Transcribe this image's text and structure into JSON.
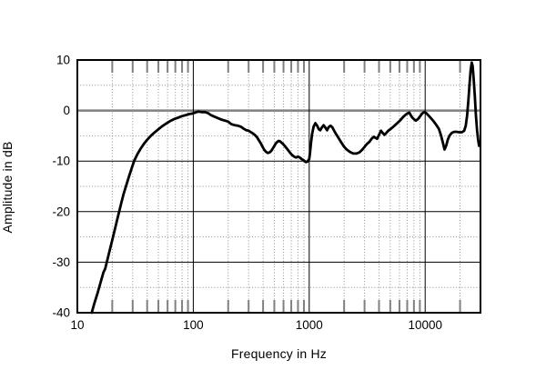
{
  "figure": {
    "background": "#ffffff"
  },
  "chart_data": {
    "type": "line",
    "title": "",
    "xlabel": "Frequency in Hz",
    "ylabel": "Amplitude in dB",
    "x_scale": "log",
    "xlim": [
      10,
      30000
    ],
    "ylim": [
      -40,
      10
    ],
    "x_tick_values": [
      10,
      100,
      1000,
      10000
    ],
    "x_tick_labels": [
      "10",
      "100",
      "1000",
      "10000"
    ],
    "y_tick_values": [
      10,
      0,
      -10,
      -20,
      -30,
      -40
    ],
    "y_tick_labels": [
      "10",
      "0",
      "-10",
      "-20",
      "-30",
      "-40"
    ],
    "y_minor_dotted": [
      5,
      -5,
      -15,
      -25,
      -35
    ],
    "grid": {
      "horizontal_major": "solid",
      "horizontal_minor": "dotted",
      "vertical_decades": "solid",
      "vertical_minor": "dotted",
      "inner_axis_ticks": "top-and-bottom"
    },
    "legend": null,
    "colors": {
      "curve": "#000000",
      "axis_border": "#000000",
      "major_grid": "#000000",
      "zero_line": "#808080",
      "minor_grid": "#8c8c8c",
      "inner_tick": "#808080",
      "text": "#000000",
      "background": "#ffffff"
    },
    "series": [
      {
        "name": "frequency-response",
        "color": "#000000",
        "stroke_width": 2.8,
        "points": [
          [
            13.3,
            -40
          ],
          [
            14,
            -38.2
          ],
          [
            15,
            -36
          ],
          [
            16,
            -33.7
          ],
          [
            16.8,
            -32
          ],
          [
            17.4,
            -31.3
          ],
          [
            18,
            -29.9
          ],
          [
            19,
            -27.7
          ],
          [
            20,
            -25.6
          ],
          [
            21,
            -23.6
          ],
          [
            22,
            -21.7
          ],
          [
            23,
            -19.9
          ],
          [
            24,
            -18.2
          ],
          [
            25,
            -16.6
          ],
          [
            26.5,
            -14.7
          ],
          [
            28,
            -12.9
          ],
          [
            29.5,
            -11.3
          ],
          [
            31,
            -9.9
          ],
          [
            33,
            -8.6
          ],
          [
            35,
            -7.6
          ],
          [
            37.5,
            -6.6
          ],
          [
            40,
            -5.8
          ],
          [
            43,
            -5
          ],
          [
            46,
            -4.4
          ],
          [
            50,
            -3.7
          ],
          [
            54,
            -3.1
          ],
          [
            58,
            -2.6
          ],
          [
            63,
            -2.1
          ],
          [
            68,
            -1.7
          ],
          [
            74,
            -1.4
          ],
          [
            80,
            -1.1
          ],
          [
            86,
            -0.9
          ],
          [
            92,
            -0.7
          ],
          [
            98,
            -0.6
          ],
          [
            104,
            -0.4
          ],
          [
            110,
            -0.2
          ],
          [
            118,
            -0.3
          ],
          [
            126,
            -0.3
          ],
          [
            134,
            -0.5
          ],
          [
            142,
            -0.9
          ],
          [
            152,
            -1.2
          ],
          [
            163,
            -1.5
          ],
          [
            175,
            -1.8
          ],
          [
            188,
            -2
          ],
          [
            200,
            -2.2
          ],
          [
            213,
            -2.7
          ],
          [
            228,
            -2.9
          ],
          [
            243,
            -3
          ],
          [
            258,
            -3.2
          ],
          [
            272,
            -3.6
          ],
          [
            287,
            -3.9
          ],
          [
            300,
            -4
          ],
          [
            315,
            -4.3
          ],
          [
            330,
            -4.6
          ],
          [
            342,
            -4.9
          ],
          [
            355,
            -5.3
          ],
          [
            368,
            -5.9
          ],
          [
            382,
            -6.5
          ],
          [
            396,
            -7.2
          ],
          [
            410,
            -7.8
          ],
          [
            425,
            -8.2
          ],
          [
            440,
            -8.4
          ],
          [
            455,
            -8.3
          ],
          [
            470,
            -8
          ],
          [
            485,
            -7.5
          ],
          [
            500,
            -7
          ],
          [
            515,
            -6.5
          ],
          [
            530,
            -6.2
          ],
          [
            545,
            -6
          ],
          [
            560,
            -6.1
          ],
          [
            580,
            -6.4
          ],
          [
            600,
            -6.7
          ],
          [
            625,
            -7.2
          ],
          [
            650,
            -7.7
          ],
          [
            680,
            -8.3
          ],
          [
            710,
            -8.8
          ],
          [
            740,
            -9.1
          ],
          [
            770,
            -9.3
          ],
          [
            800,
            -9.1
          ],
          [
            830,
            -9.3
          ],
          [
            860,
            -9.6
          ],
          [
            900,
            -9.9
          ],
          [
            935,
            -10.2
          ],
          [
            965,
            -10.1
          ],
          [
            1000,
            -9.6
          ],
          [
            1015,
            -8.5
          ],
          [
            1035,
            -6.5
          ],
          [
            1060,
            -4.6
          ],
          [
            1090,
            -3.2
          ],
          [
            1130,
            -2.5
          ],
          [
            1170,
            -3
          ],
          [
            1210,
            -3.7
          ],
          [
            1245,
            -3.9
          ],
          [
            1280,
            -3.4
          ],
          [
            1330,
            -2.9
          ],
          [
            1380,
            -3.4
          ],
          [
            1425,
            -3.9
          ],
          [
            1470,
            -3.3
          ],
          [
            1530,
            -3
          ],
          [
            1580,
            -3.3
          ],
          [
            1650,
            -4.1
          ],
          [
            1720,
            -4.8
          ],
          [
            1800,
            -5.5
          ],
          [
            1890,
            -6.3
          ],
          [
            1990,
            -7.1
          ],
          [
            2100,
            -7.7
          ],
          [
            2250,
            -8.2
          ],
          [
            2400,
            -8.5
          ],
          [
            2550,
            -8.5
          ],
          [
            2700,
            -8.3
          ],
          [
            2850,
            -7.8
          ],
          [
            3000,
            -7.2
          ],
          [
            3150,
            -6.6
          ],
          [
            3300,
            -6.2
          ],
          [
            3450,
            -5.6
          ],
          [
            3600,
            -5.2
          ],
          [
            3720,
            -5.4
          ],
          [
            3850,
            -5.6
          ],
          [
            4000,
            -4.8
          ],
          [
            4150,
            -4
          ],
          [
            4300,
            -4.4
          ],
          [
            4450,
            -4.8
          ],
          [
            4600,
            -4.5
          ],
          [
            4800,
            -4
          ],
          [
            5000,
            -3.7
          ],
          [
            5250,
            -3.3
          ],
          [
            5500,
            -2.9
          ],
          [
            5800,
            -2.4
          ],
          [
            6100,
            -1.9
          ],
          [
            6450,
            -1.3
          ],
          [
            6800,
            -0.8
          ],
          [
            7100,
            -0.5
          ],
          [
            7300,
            -0.4
          ],
          [
            7500,
            -0.9
          ],
          [
            7750,
            -1.4
          ],
          [
            8000,
            -1.7
          ],
          [
            8300,
            -2
          ],
          [
            8650,
            -1.7
          ],
          [
            9000,
            -1.2
          ],
          [
            9400,
            -0.6
          ],
          [
            9800,
            -0.3
          ],
          [
            10200,
            -0.5
          ],
          [
            10700,
            -1
          ],
          [
            11300,
            -1.6
          ],
          [
            11900,
            -2.2
          ],
          [
            12500,
            -2.9
          ],
          [
            13100,
            -3.6
          ],
          [
            13700,
            -4.9
          ],
          [
            14200,
            -6.3
          ],
          [
            14700,
            -7.7
          ],
          [
            15200,
            -6.9
          ],
          [
            15700,
            -5.7
          ],
          [
            16300,
            -4.9
          ],
          [
            17000,
            -4.4
          ],
          [
            17800,
            -4.2
          ],
          [
            18700,
            -4.2
          ],
          [
            19700,
            -4.3
          ],
          [
            20700,
            -4.3
          ],
          [
            21700,
            -4
          ],
          [
            22400,
            -3
          ],
          [
            23000,
            -1
          ],
          [
            23600,
            2
          ],
          [
            24200,
            5.5
          ],
          [
            24700,
            8
          ],
          [
            25200,
            9.5
          ],
          [
            25700,
            8.8
          ],
          [
            26200,
            6.3
          ],
          [
            26800,
            2.8
          ],
          [
            27400,
            -1
          ],
          [
            28000,
            -3.8
          ],
          [
            28600,
            -5.8
          ],
          [
            29200,
            -7
          ]
        ]
      }
    ]
  }
}
